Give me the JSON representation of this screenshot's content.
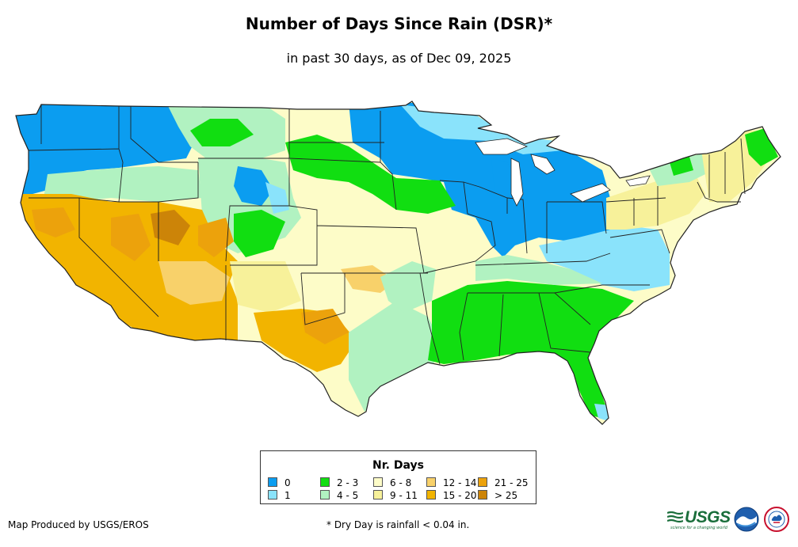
{
  "title": "Number of Days Since Rain (DSR)*",
  "subtitle": "in past 30 days, as of Dec 09, 2025",
  "legend": {
    "title": "Nr. Days",
    "items": [
      {
        "label": "0",
        "color": "#0b9df0"
      },
      {
        "label": "1",
        "color": "#8ae3fb"
      },
      {
        "label": "2 - 3",
        "color": "#11de11"
      },
      {
        "label": "4 - 5",
        "color": "#b1f2c1"
      },
      {
        "label": "6 - 8",
        "color": "#fdfcc8"
      },
      {
        "label": "9 - 11",
        "color": "#f7f19a"
      },
      {
        "label": "12 - 14",
        "color": "#f8d16a"
      },
      {
        "label": "15 - 20",
        "color": "#f2b400"
      },
      {
        "label": "21 - 25",
        "color": "#eca20c"
      },
      {
        "label": "> 25",
        "color": "#cc8408"
      }
    ]
  },
  "footer": {
    "producer": "Map Produced by USGS/EROS",
    "footnote": "* Dry Day is rainfall < 0.04 in."
  },
  "logos": {
    "usgs": {
      "word": "USGS",
      "tagline": "science for a changing world",
      "color": "#1a6e3b"
    },
    "noaa": {
      "icon": "noaa-logo-icon"
    },
    "nws": {
      "icon": "national-weather-service-logo-icon"
    }
  }
}
